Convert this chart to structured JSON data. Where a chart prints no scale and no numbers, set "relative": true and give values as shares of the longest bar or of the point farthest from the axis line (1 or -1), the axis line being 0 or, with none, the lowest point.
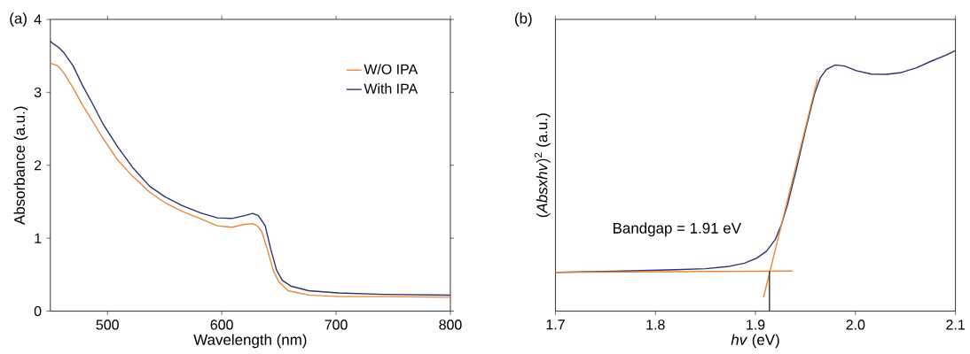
{
  "chart_data": [
    {
      "type": "line",
      "xlabel": "Wavelength (nm)",
      "ylabel": "Absorbance (a.u.)",
      "xlim": [
        450,
        800
      ],
      "ylim": [
        0,
        4
      ],
      "xticks": [
        500,
        600,
        700,
        800
      ],
      "yticks": [
        0,
        1,
        2,
        3,
        4
      ],
      "legend": "top right",
      "annotations": [
        "(a)"
      ],
      "series": [
        {
          "name": "W/O IPA",
          "color": "#e8873a",
          "x": [
            450,
            457,
            462,
            470,
            478,
            486,
            496,
            509,
            522,
            537,
            550,
            565,
            581,
            596,
            609,
            620,
            627,
            631,
            635,
            640,
            645,
            650,
            658,
            676,
            702,
            741,
            800
          ],
          "values": [
            3.4,
            3.36,
            3.26,
            3.06,
            2.83,
            2.63,
            2.37,
            2.07,
            1.85,
            1.63,
            1.49,
            1.37,
            1.27,
            1.17,
            1.15,
            1.19,
            1.2,
            1.17,
            1.09,
            0.84,
            0.56,
            0.4,
            0.28,
            0.22,
            0.2,
            0.2,
            0.19
          ]
        },
        {
          "name": "With IPA",
          "color": "#2e3267",
          "x": [
            450,
            453,
            457,
            462,
            470,
            478,
            486,
            496,
            509,
            522,
            537,
            550,
            565,
            581,
            596,
            609,
            620,
            627,
            632,
            638,
            643,
            648,
            653,
            661,
            676,
            702,
            741,
            800
          ],
          "values": [
            3.7,
            3.66,
            3.62,
            3.54,
            3.36,
            3.1,
            2.87,
            2.57,
            2.25,
            1.97,
            1.71,
            1.57,
            1.45,
            1.35,
            1.28,
            1.27,
            1.31,
            1.34,
            1.31,
            1.17,
            0.84,
            0.56,
            0.42,
            0.34,
            0.28,
            0.25,
            0.23,
            0.22
          ]
        }
      ]
    },
    {
      "type": "line",
      "relative": true,
      "xlabel": "*hv* (eV)",
      "ylabel": "(*Absxhv*)$^{2}$ (a.u.)",
      "xlim": [
        1.7,
        2.1
      ],
      "xticks": [
        1.7,
        1.8,
        1.9,
        {
          "value": 2.0,
          "label": "2.0"
        },
        2.1
      ],
      "tick_labels": "x",
      "legend": false,
      "annotations": [
        "(b)",
        "Bandgap = 1.91 eV"
      ],
      "series": [
        {
          "color": "#2e3267",
          "x": [
            1.7,
            1.76,
            1.82,
            1.85,
            1.874,
            1.889,
            1.901,
            1.911,
            1.92,
            1.926,
            1.932,
            1.941,
            1.95,
            1.959,
            1.965,
            1.971,
            1.98,
            1.989,
            2.001,
            2.016,
            2.031,
            2.046,
            2.061,
            2.076,
            2.091,
            2.1
          ],
          "values": [
            0.149,
            0.153,
            0.159,
            0.163,
            0.172,
            0.184,
            0.203,
            0.23,
            0.276,
            0.333,
            0.408,
            0.546,
            0.695,
            0.833,
            0.897,
            0.928,
            0.945,
            0.941,
            0.923,
            0.91,
            0.909,
            0.916,
            0.934,
            0.96,
            0.983,
            1.0
          ]
        },
        {
          "color": "#e8873a",
          "x": [
            1.7,
            1.937
          ],
          "values": [
            0.149,
            0.154
          ]
        },
        {
          "color": "#e8873a",
          "x": [
            1.908,
            1.962
          ],
          "values": [
            0.052,
            0.891
          ]
        },
        {
          "color": "#333333",
          "x": [
            1.914,
            1.914
          ],
          "values": [
            0,
            0.153
          ]
        }
      ]
    }
  ]
}
